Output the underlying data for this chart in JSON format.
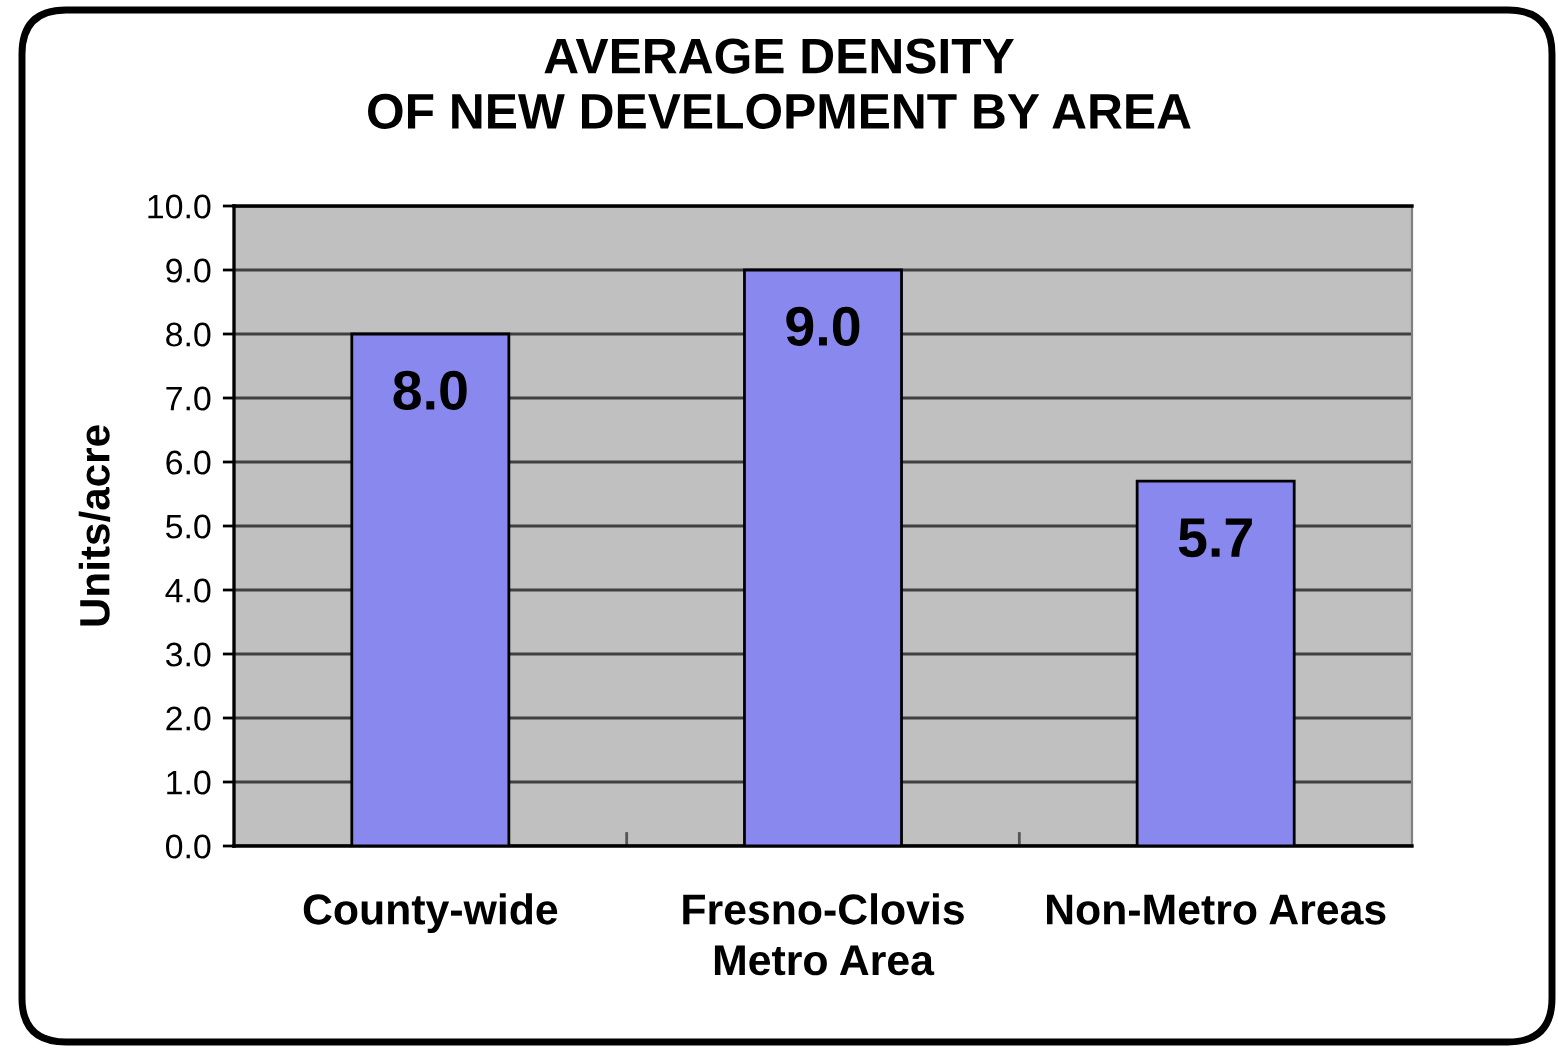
{
  "chart_data": {
    "type": "bar",
    "title": "AVERAGE DENSITY\nOF NEW DEVELOPMENT BY AREA",
    "ylabel": "Units/acre",
    "categories": [
      "County-wide",
      "Fresno-Clovis\nMetro Area",
      "Non-Metro Areas"
    ],
    "values": [
      8.0,
      9.0,
      5.7
    ],
    "color": "#8888ee",
    "value_labels": [
      "8.0",
      "9.0",
      "5.7"
    ],
    "ylim": [
      0,
      10
    ],
    "yticks": [
      {
        "value": 0,
        "label": "0.0"
      },
      {
        "value": 1,
        "label": "1.0"
      },
      {
        "value": 2,
        "label": "2.0"
      },
      {
        "value": 3,
        "label": "3.0"
      },
      {
        "value": 4,
        "label": "4.0"
      },
      {
        "value": 5,
        "label": "5.0"
      },
      {
        "value": 6,
        "label": "6.0"
      },
      {
        "value": 7,
        "label": "7.0"
      },
      {
        "value": 8,
        "label": "8.0"
      },
      {
        "value": 9,
        "label": "9.0"
      },
      {
        "value": 10,
        "label": "10.0"
      }
    ],
    "grid": "y"
  }
}
